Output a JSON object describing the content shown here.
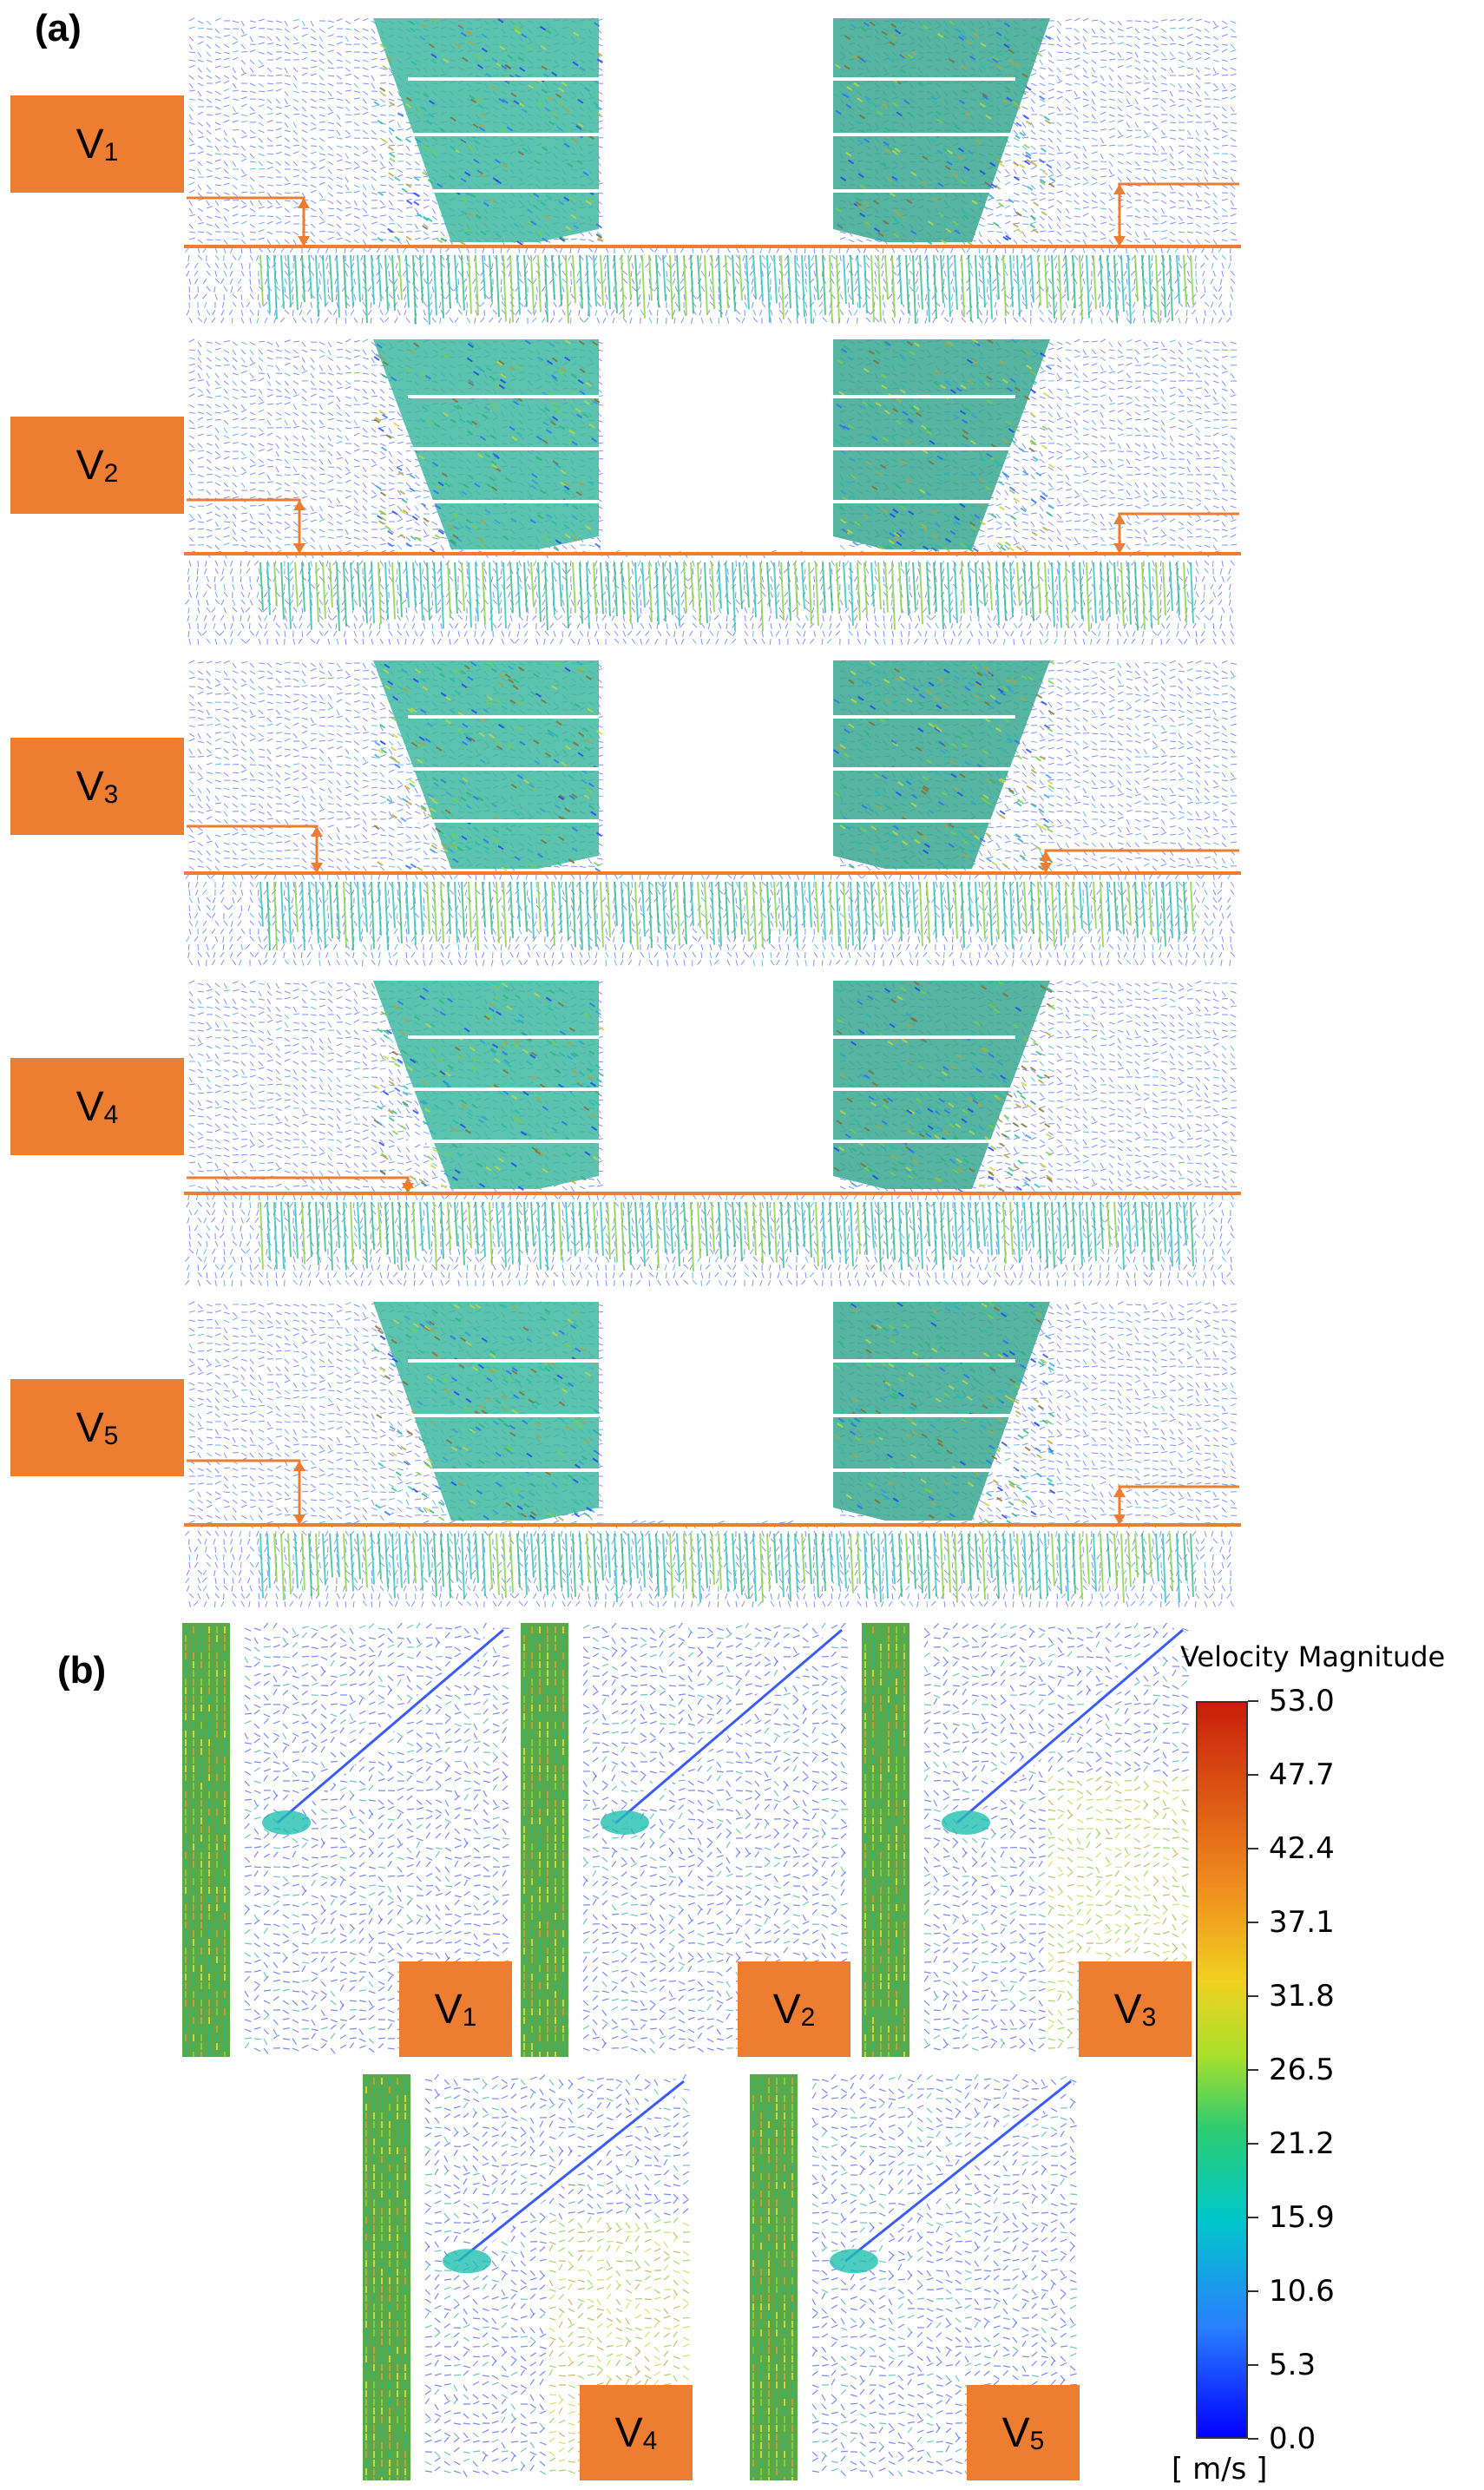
{
  "figure": {
    "part_a_label": "(a)",
    "part_b_label": "(b)"
  },
  "part_a": {
    "panels": [
      {
        "id": "V1",
        "letter": "V",
        "sub": "1"
      },
      {
        "id": "V2",
        "letter": "V",
        "sub": "2"
      },
      {
        "id": "V3",
        "letter": "V",
        "sub": "3"
      },
      {
        "id": "V4",
        "letter": "V",
        "sub": "4"
      },
      {
        "id": "V5",
        "letter": "V",
        "sub": "5"
      }
    ]
  },
  "part_b": {
    "panels": [
      {
        "id": "V1",
        "letter": "V",
        "sub": "1"
      },
      {
        "id": "V2",
        "letter": "V",
        "sub": "2"
      },
      {
        "id": "V3",
        "letter": "V",
        "sub": "3"
      },
      {
        "id": "V4",
        "letter": "V",
        "sub": "4"
      },
      {
        "id": "V5",
        "letter": "V",
        "sub": "5"
      }
    ]
  },
  "colorbar": {
    "title": "Velocity Magnitude",
    "unit": "[ m/s ]",
    "ticks": [
      "53.0",
      "47.7",
      "42.4",
      "37.1",
      "31.8",
      "26.5",
      "21.2",
      "15.9",
      "10.6",
      "5.3",
      "0.0"
    ],
    "min": 0.0,
    "max": 53.0,
    "colors": [
      "#0000ff",
      "#2a7fff",
      "#00c8c8",
      "#2ecc71",
      "#a8e02a",
      "#f0d020",
      "#f08c1e",
      "#c81e0a"
    ]
  },
  "colors": {
    "label_orange": "#ed7d31",
    "vector_blue": "#3a5cff",
    "vector_green": "#2fa87a"
  }
}
